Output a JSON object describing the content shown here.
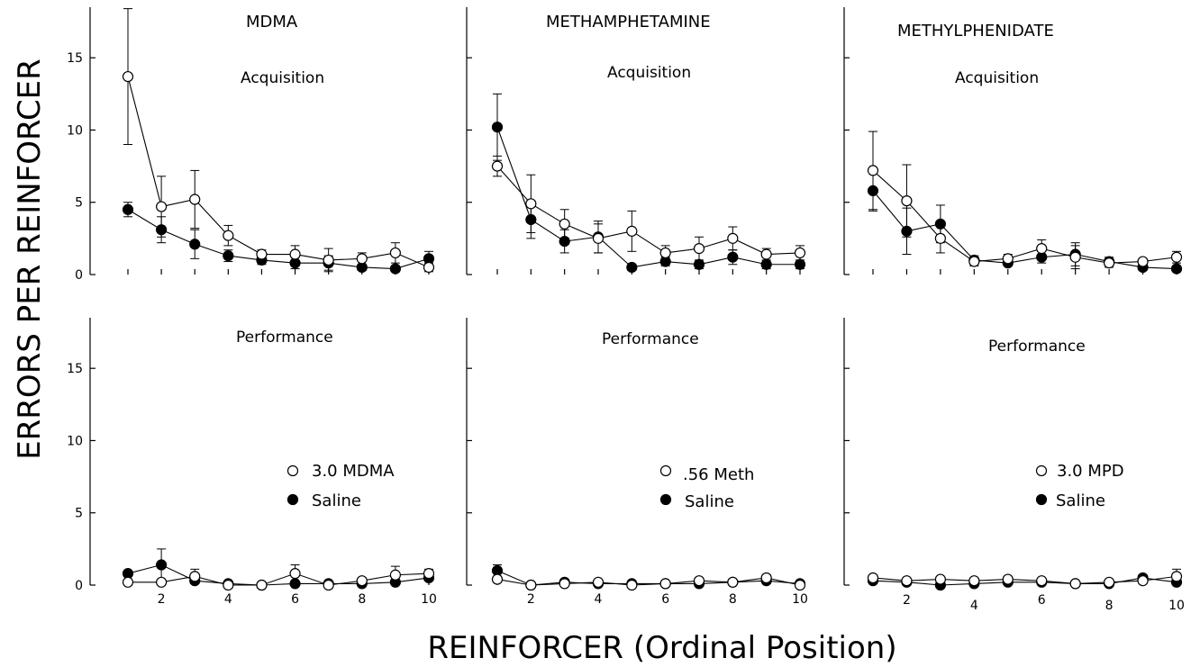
{
  "figure": {
    "ylabel": "ERRORS PER REINFORCER",
    "xlabel": "REINFORCER (Ordinal Position)"
  },
  "columns": [
    {
      "title": "MDMA",
      "legend": {
        "open": "3.0 MDMA",
        "filled": "Saline"
      }
    },
    {
      "title": "METHAMPHETAMINE",
      "legend": {
        "open": ".56 Meth",
        "filled": "Saline"
      }
    },
    {
      "title": "METHYLPHENIDATE",
      "legend": {
        "open": "3.0 MPD",
        "filled": "Saline"
      }
    }
  ],
  "rows": [
    {
      "label": "Acquisition"
    },
    {
      "label": "Performance"
    }
  ],
  "chart_data": [
    {
      "type": "line",
      "drug": "MDMA",
      "phase": "Acquisition",
      "x": [
        1,
        2,
        3,
        4,
        5,
        6,
        7,
        8,
        9,
        10
      ],
      "xticks": [
        2,
        4,
        6,
        8,
        10
      ],
      "yticks": [
        0,
        5,
        10,
        15
      ],
      "ylim": [
        0,
        18.5
      ],
      "series": [
        {
          "name": "3.0 MDMA",
          "marker": "open",
          "values": [
            13.7,
            4.7,
            5.2,
            2.7,
            1.4,
            1.4,
            1.0,
            1.1,
            1.5,
            0.5
          ],
          "err": [
            4.7,
            2.1,
            2.0,
            0.7,
            0.3,
            0.6,
            0.8,
            0.4,
            0.7,
            0.3
          ]
        },
        {
          "name": "Saline",
          "marker": "filled",
          "values": [
            4.5,
            3.1,
            2.1,
            1.3,
            1.0,
            0.8,
            0.8,
            0.5,
            0.4,
            1.1
          ],
          "err": [
            0.5,
            0.9,
            1.0,
            0.4,
            0.3,
            0.4,
            0.5,
            0.2,
            0.2,
            0.5
          ]
        }
      ]
    },
    {
      "type": "line",
      "drug": "METHAMPHETAMINE",
      "phase": "Acquisition",
      "x": [
        1,
        2,
        3,
        4,
        5,
        6,
        7,
        8,
        9,
        10
      ],
      "xticks": [
        2,
        4,
        6,
        8,
        10
      ],
      "yticks": [
        0,
        5,
        10,
        15
      ],
      "ylim": [
        0,
        18.5
      ],
      "series": [
        {
          "name": ".56 Meth",
          "marker": "open",
          "values": [
            7.5,
            4.9,
            3.5,
            2.5,
            3.0,
            1.5,
            1.8,
            2.5,
            1.4,
            1.5
          ],
          "err": [
            0.7,
            2.0,
            1.0,
            1.0,
            1.4,
            0.5,
            0.8,
            0.8,
            0.4,
            0.5
          ]
        },
        {
          "name": "Saline",
          "marker": "filled",
          "values": [
            10.2,
            3.8,
            2.3,
            2.6,
            0.5,
            0.9,
            0.7,
            1.2,
            0.7,
            0.7
          ],
          "err": [
            2.3,
            1.3,
            0.8,
            1.1,
            0.2,
            0.3,
            0.3,
            0.5,
            0.3,
            0.3
          ]
        }
      ]
    },
    {
      "type": "line",
      "drug": "METHYLPHENIDATE",
      "phase": "Acquisition",
      "x": [
        1,
        2,
        3,
        4,
        5,
        6,
        7,
        8,
        9,
        10
      ],
      "xticks": [
        2,
        4,
        6,
        8,
        10
      ],
      "yticks": [
        0,
        5,
        10,
        15
      ],
      "ylim": [
        0,
        18.5
      ],
      "series": [
        {
          "name": "3.0 MPD",
          "marker": "open",
          "values": [
            7.2,
            5.1,
            2.5,
            0.9,
            1.1,
            1.8,
            1.2,
            0.8,
            0.9,
            1.2
          ],
          "err": [
            2.7,
            2.5,
            1.0,
            0.3,
            0.3,
            0.6,
            0.8,
            0.3,
            0.2,
            0.4
          ]
        },
        {
          "name": "Saline",
          "marker": "filled",
          "values": [
            5.8,
            3.0,
            3.5,
            1.0,
            0.8,
            1.2,
            1.4,
            0.9,
            0.5,
            0.4
          ],
          "err": [
            1.4,
            1.6,
            1.3,
            0.3,
            0.2,
            0.4,
            0.8,
            0.3,
            0.2,
            0.2
          ]
        }
      ]
    },
    {
      "type": "line",
      "drug": "MDMA",
      "phase": "Performance",
      "x": [
        1,
        2,
        3,
        4,
        5,
        6,
        7,
        8,
        9,
        10
      ],
      "xticks": [
        2,
        4,
        6,
        8,
        10
      ],
      "yticks": [
        0,
        5,
        10,
        15
      ],
      "ylim": [
        0,
        18.5
      ],
      "series": [
        {
          "name": "3.0 MDMA",
          "marker": "open",
          "values": [
            0.2,
            0.2,
            0.6,
            0.0,
            0.0,
            0.8,
            0.0,
            0.3,
            0.7,
            0.8
          ],
          "err": [
            0.1,
            0.1,
            0.5,
            0.1,
            0.1,
            0.6,
            0.1,
            0.2,
            0.6,
            0.3
          ]
        },
        {
          "name": "Saline",
          "marker": "filled",
          "values": [
            0.8,
            1.4,
            0.3,
            0.1,
            0.0,
            0.1,
            0.1,
            0.1,
            0.2,
            0.5
          ],
          "err": [
            0.2,
            1.1,
            0.2,
            0.1,
            0.1,
            0.1,
            0.1,
            0.1,
            0.1,
            0.2
          ]
        }
      ]
    },
    {
      "type": "line",
      "drug": "METHAMPHETAMINE",
      "phase": "Performance",
      "x": [
        1,
        2,
        3,
        4,
        5,
        6,
        7,
        8,
        9,
        10
      ],
      "xticks": [
        2,
        4,
        6,
        8,
        10
      ],
      "yticks": [
        0,
        5,
        10,
        15
      ],
      "ylim": [
        0,
        18.5
      ],
      "series": [
        {
          "name": ".56 Meth",
          "marker": "open",
          "values": [
            0.4,
            0.0,
            0.1,
            0.2,
            0.0,
            0.1,
            0.3,
            0.2,
            0.5,
            0.0
          ],
          "err": [
            0.2,
            0.1,
            0.1,
            0.1,
            0.1,
            0.1,
            0.2,
            0.1,
            0.2,
            0.1
          ]
        },
        {
          "name": "Saline",
          "marker": "filled",
          "values": [
            1.0,
            0.0,
            0.2,
            0.1,
            0.1,
            0.1,
            0.1,
            0.2,
            0.3,
            0.1
          ],
          "err": [
            0.4,
            0.1,
            0.1,
            0.1,
            0.1,
            0.1,
            0.1,
            0.1,
            0.1,
            0.1
          ]
        }
      ]
    },
    {
      "type": "line",
      "drug": "METHYLPHENIDATE",
      "phase": "Performance",
      "x": [
        1,
        2,
        3,
        4,
        5,
        6,
        7,
        8,
        9,
        10
      ],
      "xticks": [
        2,
        4,
        6,
        8,
        10
      ],
      "yticks": [
        0,
        5,
        10,
        15
      ],
      "ylim": [
        0,
        18.5
      ],
      "series": [
        {
          "name": "3.0 MPD",
          "marker": "open",
          "values": [
            0.5,
            0.3,
            0.4,
            0.3,
            0.4,
            0.3,
            0.1,
            0.2,
            0.3,
            0.6
          ],
          "err": [
            0.1,
            0.1,
            0.1,
            0.1,
            0.2,
            0.1,
            0.1,
            0.1,
            0.2,
            0.5
          ]
        },
        {
          "name": "Saline",
          "marker": "filled",
          "values": [
            0.3,
            0.2,
            0.0,
            0.1,
            0.2,
            0.2,
            0.1,
            0.1,
            0.5,
            0.2
          ],
          "err": [
            0.1,
            0.1,
            0.1,
            0.1,
            0.1,
            0.1,
            0.1,
            0.1,
            0.2,
            0.1
          ]
        }
      ]
    }
  ]
}
